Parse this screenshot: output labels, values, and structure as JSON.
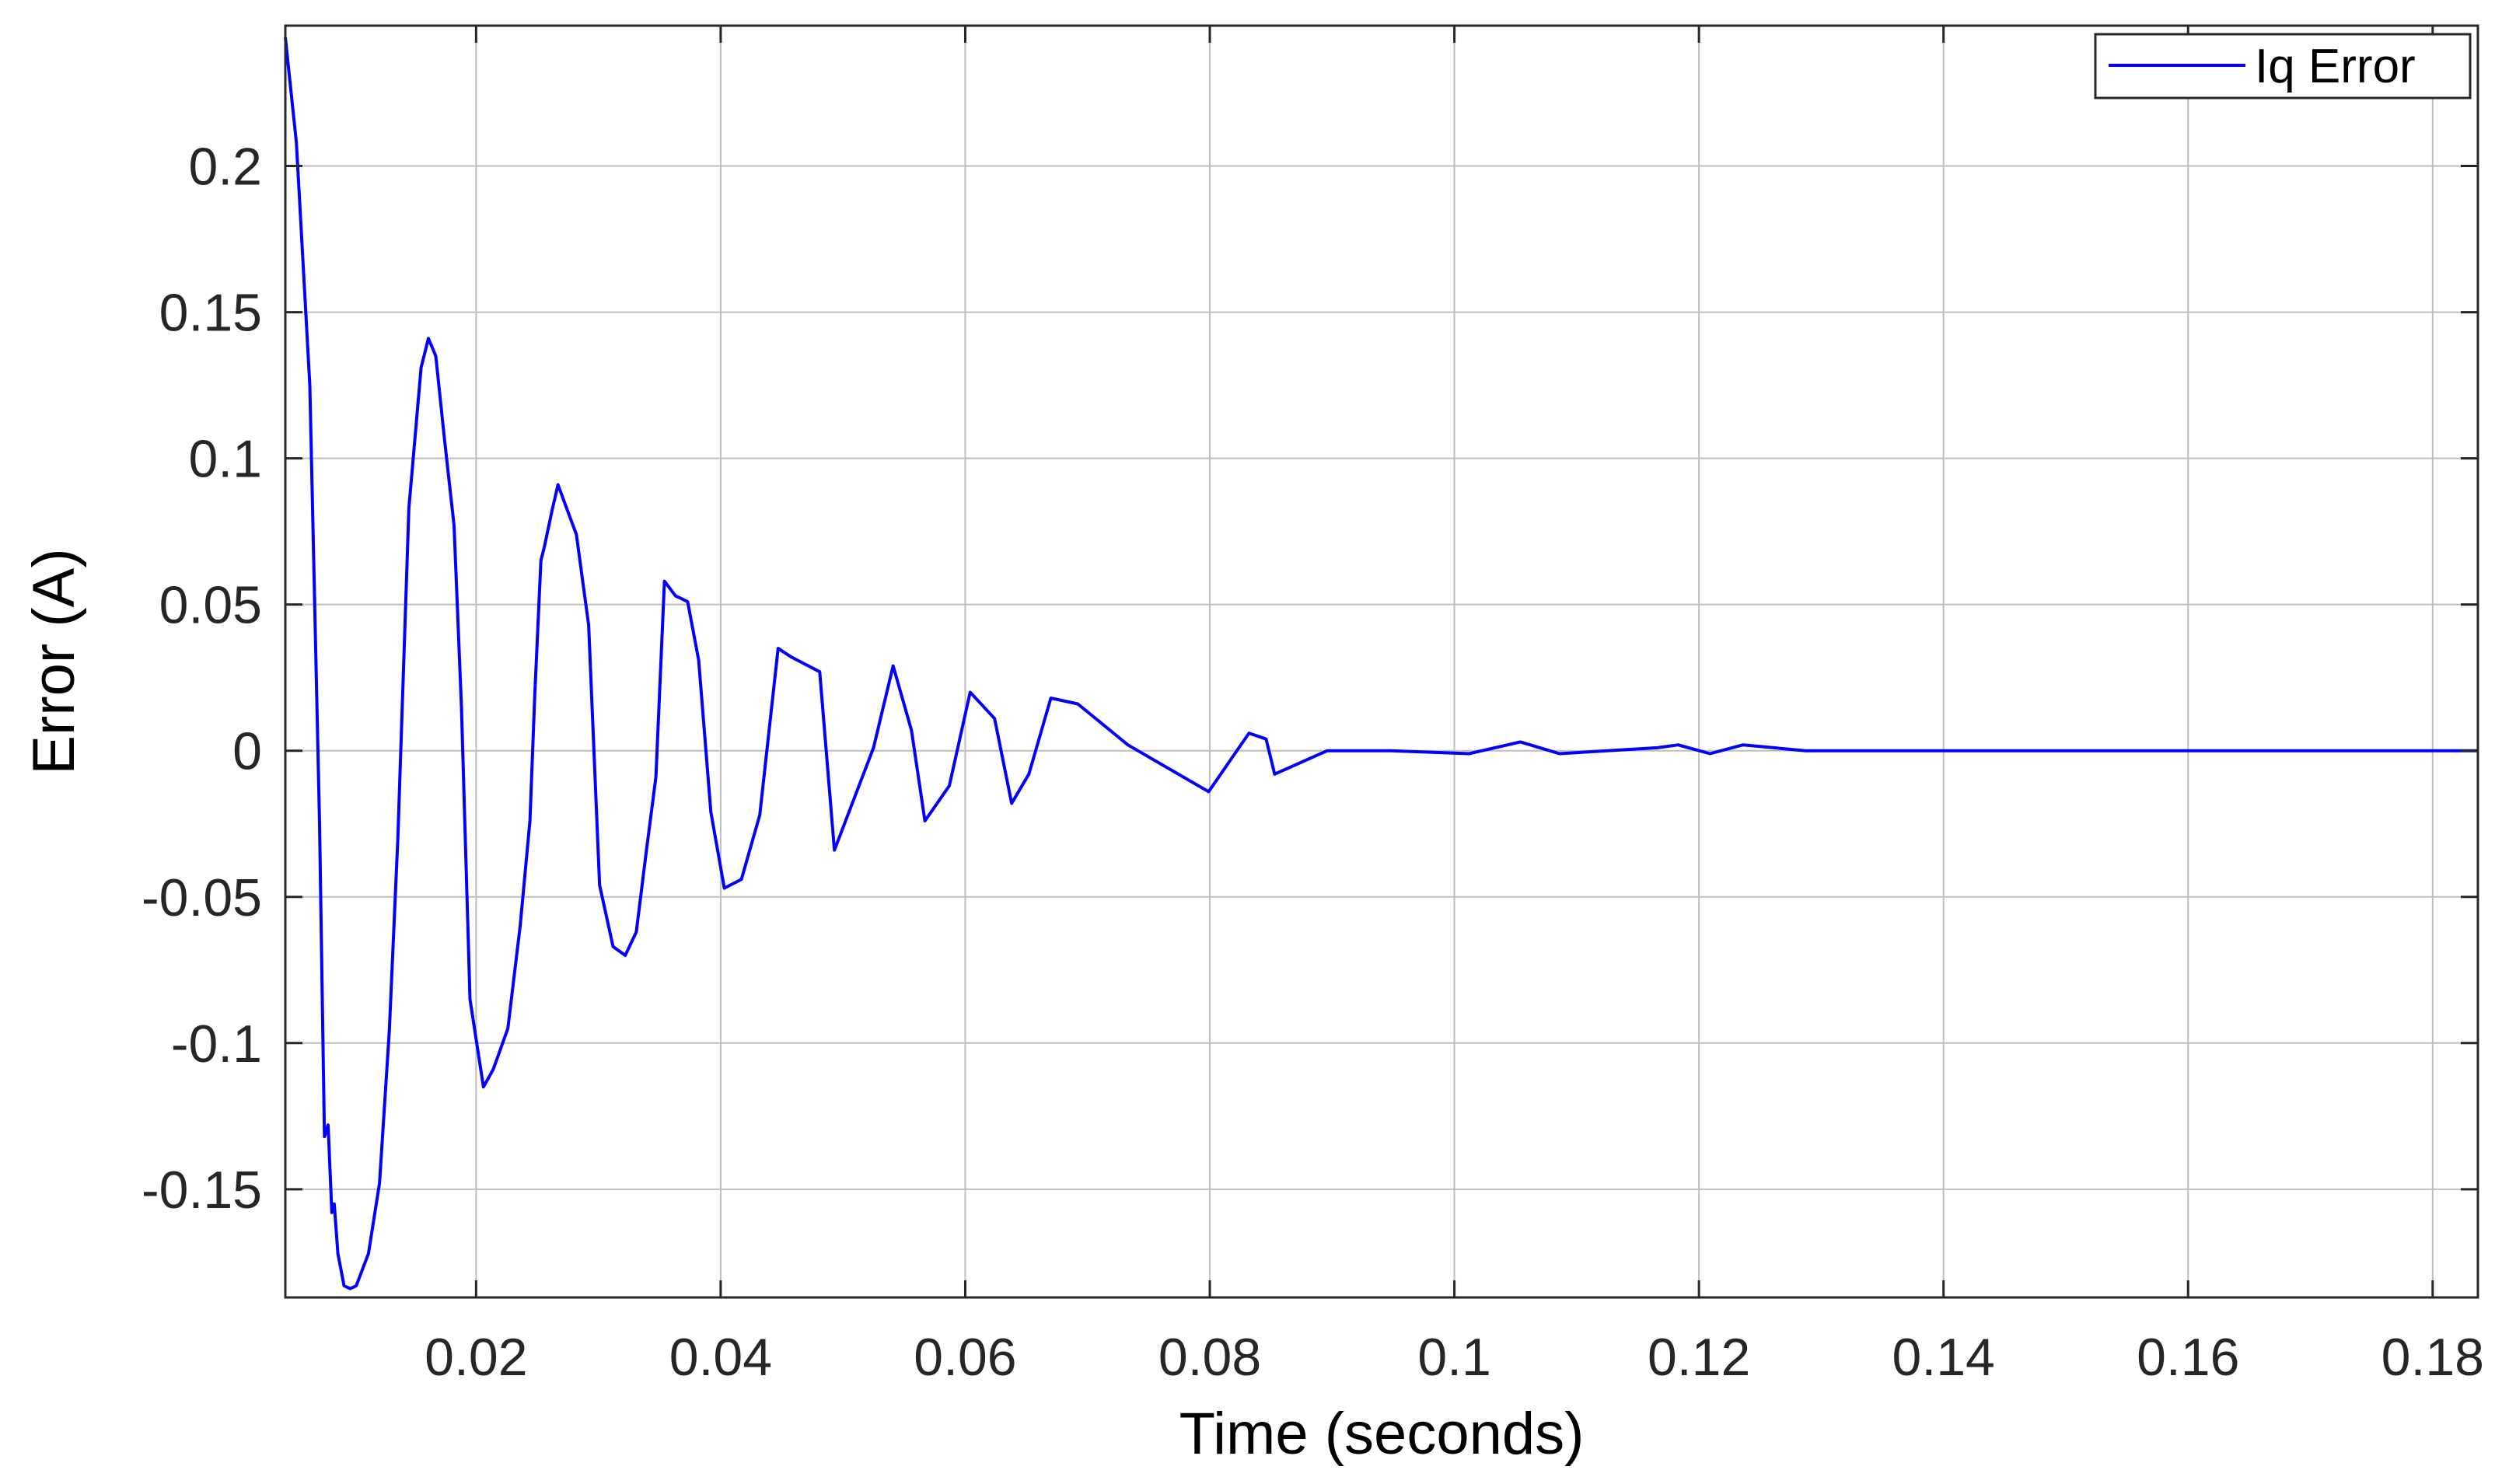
{
  "chart_data": {
    "type": "line",
    "title": "",
    "xlabel": "Time (seconds)",
    "ylabel": "Error (A)",
    "xlim": [
      0.0044,
      0.1837
    ],
    "ylim": [
      -0.187,
      0.248
    ],
    "x_ticks": [
      0.02,
      0.04,
      0.06,
      0.08,
      0.1,
      0.12,
      0.14,
      0.16,
      0.18
    ],
    "x_tick_labels": [
      "0.02",
      "0.04",
      "0.06",
      "0.08",
      "0.1",
      "0.12",
      "0.14",
      "0.16",
      "0.18"
    ],
    "y_ticks": [
      -0.15,
      -0.1,
      -0.05,
      0,
      0.05,
      0.1,
      0.15,
      0.2
    ],
    "y_tick_labels": [
      "-0.15",
      "-0.1",
      "-0.05",
      "0",
      "0.05",
      "0.1",
      "0.15",
      "0.2"
    ],
    "grid": true,
    "legend_position": "top-right",
    "colors": {
      "series": "#0000ff",
      "grid": "#bdbdbd",
      "axes": "#262626"
    },
    "series": [
      {
        "name": "Iq Error",
        "x": [
          0.0044,
          0.0047,
          0.0053,
          0.0064,
          0.0072,
          0.0076,
          0.0079,
          0.0082,
          0.0084,
          0.0087,
          0.0092,
          0.0097,
          0.0102,
          0.0112,
          0.0121,
          0.0129,
          0.0136,
          0.0145,
          0.0155,
          0.0161,
          0.0167,
          0.0174,
          0.0182,
          0.0188,
          0.0195,
          0.0206,
          0.0214,
          0.0226,
          0.0236,
          0.0244,
          0.0248,
          0.0253,
          0.0256,
          0.0262,
          0.0267,
          0.0274,
          0.0282,
          0.0292,
          0.0301,
          0.0312,
          0.0322,
          0.0331,
          0.0339,
          0.0347,
          0.0354,
          0.0363,
          0.0373,
          0.0382,
          0.0392,
          0.0403,
          0.0417,
          0.0432,
          0.0447,
          0.0458,
          0.0481,
          0.0493,
          0.0525,
          0.0541,
          0.0556,
          0.0567,
          0.0587,
          0.0604,
          0.0624,
          0.0638,
          0.0652,
          0.067,
          0.0692,
          0.0733,
          0.0799,
          0.0832,
          0.0846,
          0.0853,
          0.0896,
          0.0948,
          0.1012,
          0.1054,
          0.1086,
          0.1166,
          0.1183,
          0.1209,
          0.1236,
          0.1287,
          0.1389,
          0.1465,
          0.1591,
          0.1715,
          0.1837
        ],
        "y": [
          0.244,
          0.232,
          0.208,
          0.125,
          -0.025,
          -0.132,
          -0.128,
          -0.158,
          -0.155,
          -0.172,
          -0.183,
          -0.184,
          -0.183,
          -0.172,
          -0.148,
          -0.096,
          -0.03,
          0.083,
          0.131,
          0.141,
          0.135,
          0.107,
          0.077,
          0.015,
          -0.085,
          -0.115,
          -0.109,
          -0.095,
          -0.06,
          -0.024,
          0.019,
          0.065,
          0.07,
          0.082,
          0.091,
          0.083,
          0.074,
          0.043,
          -0.046,
          -0.067,
          -0.07,
          -0.062,
          -0.035,
          -0.009,
          0.058,
          0.053,
          0.051,
          0.031,
          -0.021,
          -0.047,
          -0.044,
          -0.022,
          0.035,
          0.032,
          0.027,
          -0.034,
          0.001,
          0.029,
          0.007,
          -0.024,
          -0.012,
          0.02,
          0.011,
          -0.018,
          -0.008,
          0.018,
          0.016,
          0.002,
          -0.014,
          0.006,
          0.004,
          -0.008,
          0.0,
          0.0,
          -0.001,
          0.003,
          -0.001,
          0.001,
          0.002,
          -0.001,
          0.002,
          0.0,
          0.0,
          0.0,
          0.0,
          0.0,
          0.0
        ]
      }
    ]
  }
}
